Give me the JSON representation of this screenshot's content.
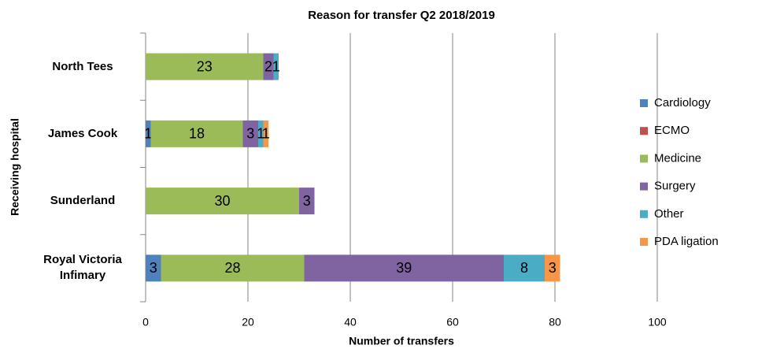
{
  "chart_data": {
    "type": "stacked_barh",
    "title": "Reason for transfer Q2 2018/2019",
    "xlabel": "Number of transfers",
    "ylabel": "Receiving hospital",
    "categories": [
      "North Tees",
      "James Cook",
      "Sunderland",
      "Royal Victoria Infimary"
    ],
    "series": [
      {
        "name": "Cardiology",
        "color": "#4f81bd",
        "values": [
          0,
          1,
          0,
          3
        ]
      },
      {
        "name": "ECMO",
        "color": "#c0504d",
        "values": [
          0,
          0,
          0,
          0
        ]
      },
      {
        "name": "Medicine",
        "color": "#9bbb59",
        "values": [
          23,
          18,
          30,
          28
        ]
      },
      {
        "name": "Surgery",
        "color": "#8064a2",
        "values": [
          2,
          3,
          3,
          39
        ]
      },
      {
        "name": "Other",
        "color": "#4bacc6",
        "values": [
          1,
          1,
          0,
          8
        ]
      },
      {
        "name": "PDA ligation",
        "color": "#f79646",
        "values": [
          0,
          1,
          0,
          3
        ]
      }
    ],
    "xlim": [
      0,
      100
    ],
    "xticks": [
      0,
      20,
      40,
      60,
      80,
      100
    ],
    "grid": true,
    "legend": "right"
  }
}
